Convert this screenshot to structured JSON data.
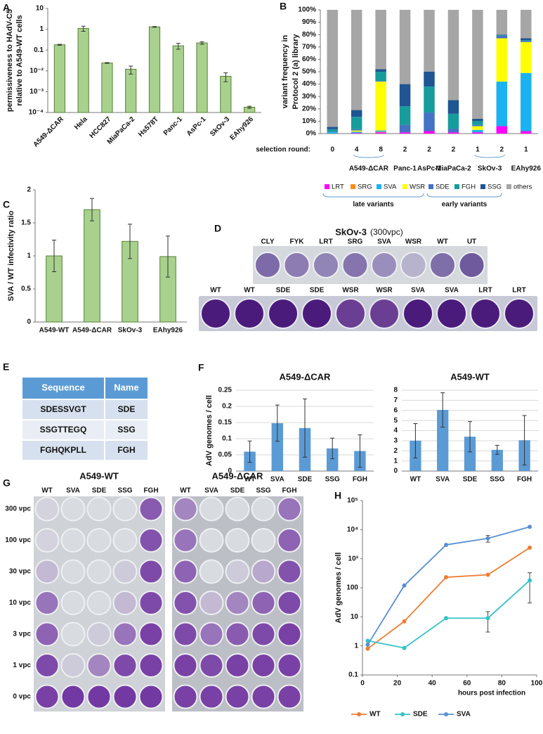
{
  "chart_data": [
    {
      "type": "bar",
      "panel": "A",
      "y_label": [
        "permissiveness to HAdV-C5",
        "relative to A549-WT cells"
      ],
      "categories": [
        "A549-ΔCAR",
        "Hela",
        "HCC827",
        "MiaPaCa-2",
        "Hs578T",
        "Panc-1",
        "AsPc-1",
        "SkOv-3",
        "EAhy926"
      ],
      "values": [
        0.18,
        1.1,
        0.024,
        0.012,
        1.3,
        0.16,
        0.22,
        0.0055,
        0.00018
      ],
      "errors": [
        0.01,
        0.3,
        0.001,
        0.005,
        0.05,
        0.05,
        0.03,
        0.0025,
        2e-05
      ],
      "color": "#a9d18e",
      "edge_color": "#548235",
      "log_y": true,
      "ylim": [
        0.0001,
        10
      ],
      "yticks": [
        {
          "value": 0.0001,
          "label": "10⁻⁴"
        },
        {
          "value": 0.001,
          "label": "10⁻³"
        },
        {
          "value": 0.01,
          "label": "10⁻²"
        },
        0.1,
        1,
        10
      ],
      "grid": false
    },
    {
      "type": "bar",
      "panel": "B",
      "stacked": true,
      "y_label": [
        "variant frequency in",
        "Protocol 2 (a) library"
      ],
      "x_label": "selection round:",
      "categories": [
        "0",
        "4",
        "8",
        "2",
        "2",
        "2",
        "1",
        "2",
        "1"
      ],
      "groups": [
        null,
        null,
        "A549-ΔCAR",
        "Panc-1",
        "AsPc-1",
        "MiaPaCa-2",
        null,
        "SkOv-3",
        "EAhy926"
      ],
      "series": [
        {
          "name": "LRT",
          "color": "#ff00ff",
          "values": [
            0,
            0.5,
            1,
            1,
            2,
            1,
            1,
            6,
            2
          ]
        },
        {
          "name": "SRG",
          "color": "#ff8c1a",
          "values": [
            0,
            0,
            0.5,
            0,
            0,
            0,
            0,
            0,
            0
          ]
        },
        {
          "name": "SVA",
          "color": "#1ab2f0",
          "values": [
            1,
            1,
            1,
            0,
            0,
            0,
            2,
            36,
            47
          ]
        },
        {
          "name": "WSR",
          "color": "#ffff00",
          "values": [
            0,
            1,
            39.5,
            0,
            0,
            0,
            3,
            35,
            25
          ]
        },
        {
          "name": "SDE",
          "color": "#4472c4",
          "values": [
            0.5,
            1,
            0.5,
            6,
            15,
            3,
            1,
            2,
            1
          ]
        },
        {
          "name": "FGH",
          "color": "#179c9c",
          "values": [
            2,
            10,
            7.5,
            15,
            21,
            12,
            3,
            0.5,
            0.5
          ]
        },
        {
          "name": "SSG",
          "color": "#1f5592",
          "values": [
            2,
            5.5,
            2,
            18,
            12,
            11,
            2,
            0.5,
            1.5
          ]
        },
        {
          "name": "others",
          "color": "#a6a6a6",
          "values": [
            94.5,
            81,
            48,
            60,
            50,
            73,
            88,
            20,
            23
          ]
        }
      ],
      "legend_groups": [
        "late variants",
        "early variants"
      ],
      "ylim": [
        0,
        100
      ],
      "yticks": [
        {
          "value": 0,
          "label": "0%"
        },
        {
          "value": 10,
          "label": "10%"
        },
        {
          "value": 20,
          "label": "20%"
        },
        {
          "value": 30,
          "label": "30%"
        },
        {
          "value": 40,
          "label": "40%"
        },
        {
          "value": 50,
          "label": "50%"
        },
        {
          "value": 60,
          "label": "60%"
        },
        {
          "value": 70,
          "label": "70%"
        },
        {
          "value": 80,
          "label": "80%"
        },
        {
          "value": 90,
          "label": "90%"
        },
        {
          "value": 100,
          "label": "100%"
        }
      ],
      "grid": false
    },
    {
      "type": "bar",
      "panel": "C",
      "y_label": [
        "SVA / WT infectivity ratio"
      ],
      "categories": [
        "A549-WT",
        "A549-ΔCAR",
        "SkOv-3",
        "EAhy926"
      ],
      "values": [
        1,
        1.7,
        1.22,
        0.99
      ],
      "errors": [
        0.24,
        0.17,
        0.26,
        0.31
      ],
      "color": "#a9d18e",
      "edge_color": "#548235",
      "ylim": [
        0,
        2
      ],
      "yticks": [
        0,
        0.5,
        1,
        1.5,
        2
      ],
      "grid": false
    },
    {
      "type": "bar",
      "panel": "F",
      "title": "A549-ΔCAR",
      "y_label": [
        "AdV genomes / cell"
      ],
      "categories": [
        "WT",
        "SVA",
        "SDE",
        "SSG",
        "FGH"
      ],
      "values": [
        0.06,
        0.148,
        0.133,
        0.07,
        0.062
      ],
      "errors": [
        0.033,
        0.056,
        0.09,
        0.032,
        0.05
      ],
      "color": "#5b9bd5",
      "ylim": [
        0,
        0.25
      ],
      "yticks": [
        0,
        0.05,
        0.1,
        0.15,
        0.2,
        0.25
      ],
      "grid": true
    },
    {
      "type": "bar",
      "title": "A549-WT",
      "categories": [
        "WT",
        "SVA",
        "SDE",
        "SSG",
        "FGH"
      ],
      "values": [
        3,
        6.05,
        3.4,
        2.1,
        3.05
      ],
      "errors": [
        1.7,
        1.7,
        1.5,
        0.45,
        2.45
      ],
      "color": "#5b9bd5",
      "ylim": [
        0,
        8
      ],
      "yticks": [
        0,
        1,
        2,
        3,
        4,
        5,
        6,
        7,
        8
      ],
      "grid": true
    },
    {
      "type": "line",
      "panel": "H",
      "y_label": [
        "AdV genomes / cell"
      ],
      "x_label": "hours post infection",
      "x": [
        3,
        24,
        48,
        72,
        96
      ],
      "series": [
        {
          "name": "WT",
          "color": "#ed7d31",
          "values": [
            0.8,
            7,
            230,
            280,
            2400
          ],
          "errors": [
            null,
            null,
            null,
            null,
            null
          ]
        },
        {
          "name": "SDE",
          "color": "#33c3c8",
          "values": [
            1.5,
            0.85,
            9,
            9,
            180
          ],
          "errors": [
            null,
            null,
            null,
            6,
            150
          ]
        },
        {
          "name": "SVA",
          "color": "#5b8fd0",
          "values": [
            1.1,
            120,
            3000,
            5000,
            12500
          ],
          "errors": [
            null,
            null,
            null,
            1300,
            null
          ]
        }
      ],
      "log_y": true,
      "xlim": [
        0,
        100
      ],
      "xticks": [
        0,
        20,
        40,
        60,
        80,
        100
      ],
      "ylim": [
        0.1,
        100000
      ],
      "yticks": [
        0.1,
        1,
        10,
        100,
        {
          "value": 1000,
          "label": "10³"
        },
        {
          "value": 10000,
          "label": "10⁴"
        },
        {
          "value": 100000,
          "label": "10⁵"
        }
      ],
      "grid": false
    }
  ],
  "plate_d": {
    "panel": "D",
    "title": "SkOv-3",
    "subtitle": "(300vpc)",
    "top_row": [
      "CLY",
      "FYK",
      "LRT",
      "SRG",
      "SVA",
      "WSR",
      "WT",
      "UT"
    ],
    "bottom_row": [
      "WT",
      "WT",
      "SDE",
      "SDE",
      "WSR",
      "WSR",
      "SVA",
      "SVA",
      "LRT",
      "LRT"
    ]
  },
  "table": {
    "panel": "E",
    "header": [
      "Sequence",
      "Name"
    ],
    "rows": [
      [
        "SDESSVGT",
        "SDE"
      ],
      [
        "SSGTTEGQ",
        "SSG"
      ],
      [
        "FGHQKPLL",
        "FGH"
      ]
    ]
  },
  "plates_g": {
    "panel": "G",
    "plates": [
      "A549-WT",
      "A549-ΔCAR"
    ],
    "columns": [
      "WT",
      "SVA",
      "SDE",
      "SSG",
      "FGH"
    ],
    "rows": [
      "300 vpc",
      "100 vpc",
      "30 vpc",
      "10 vpc",
      "3 vpc",
      "1 vpc",
      "0 vpc"
    ]
  }
}
